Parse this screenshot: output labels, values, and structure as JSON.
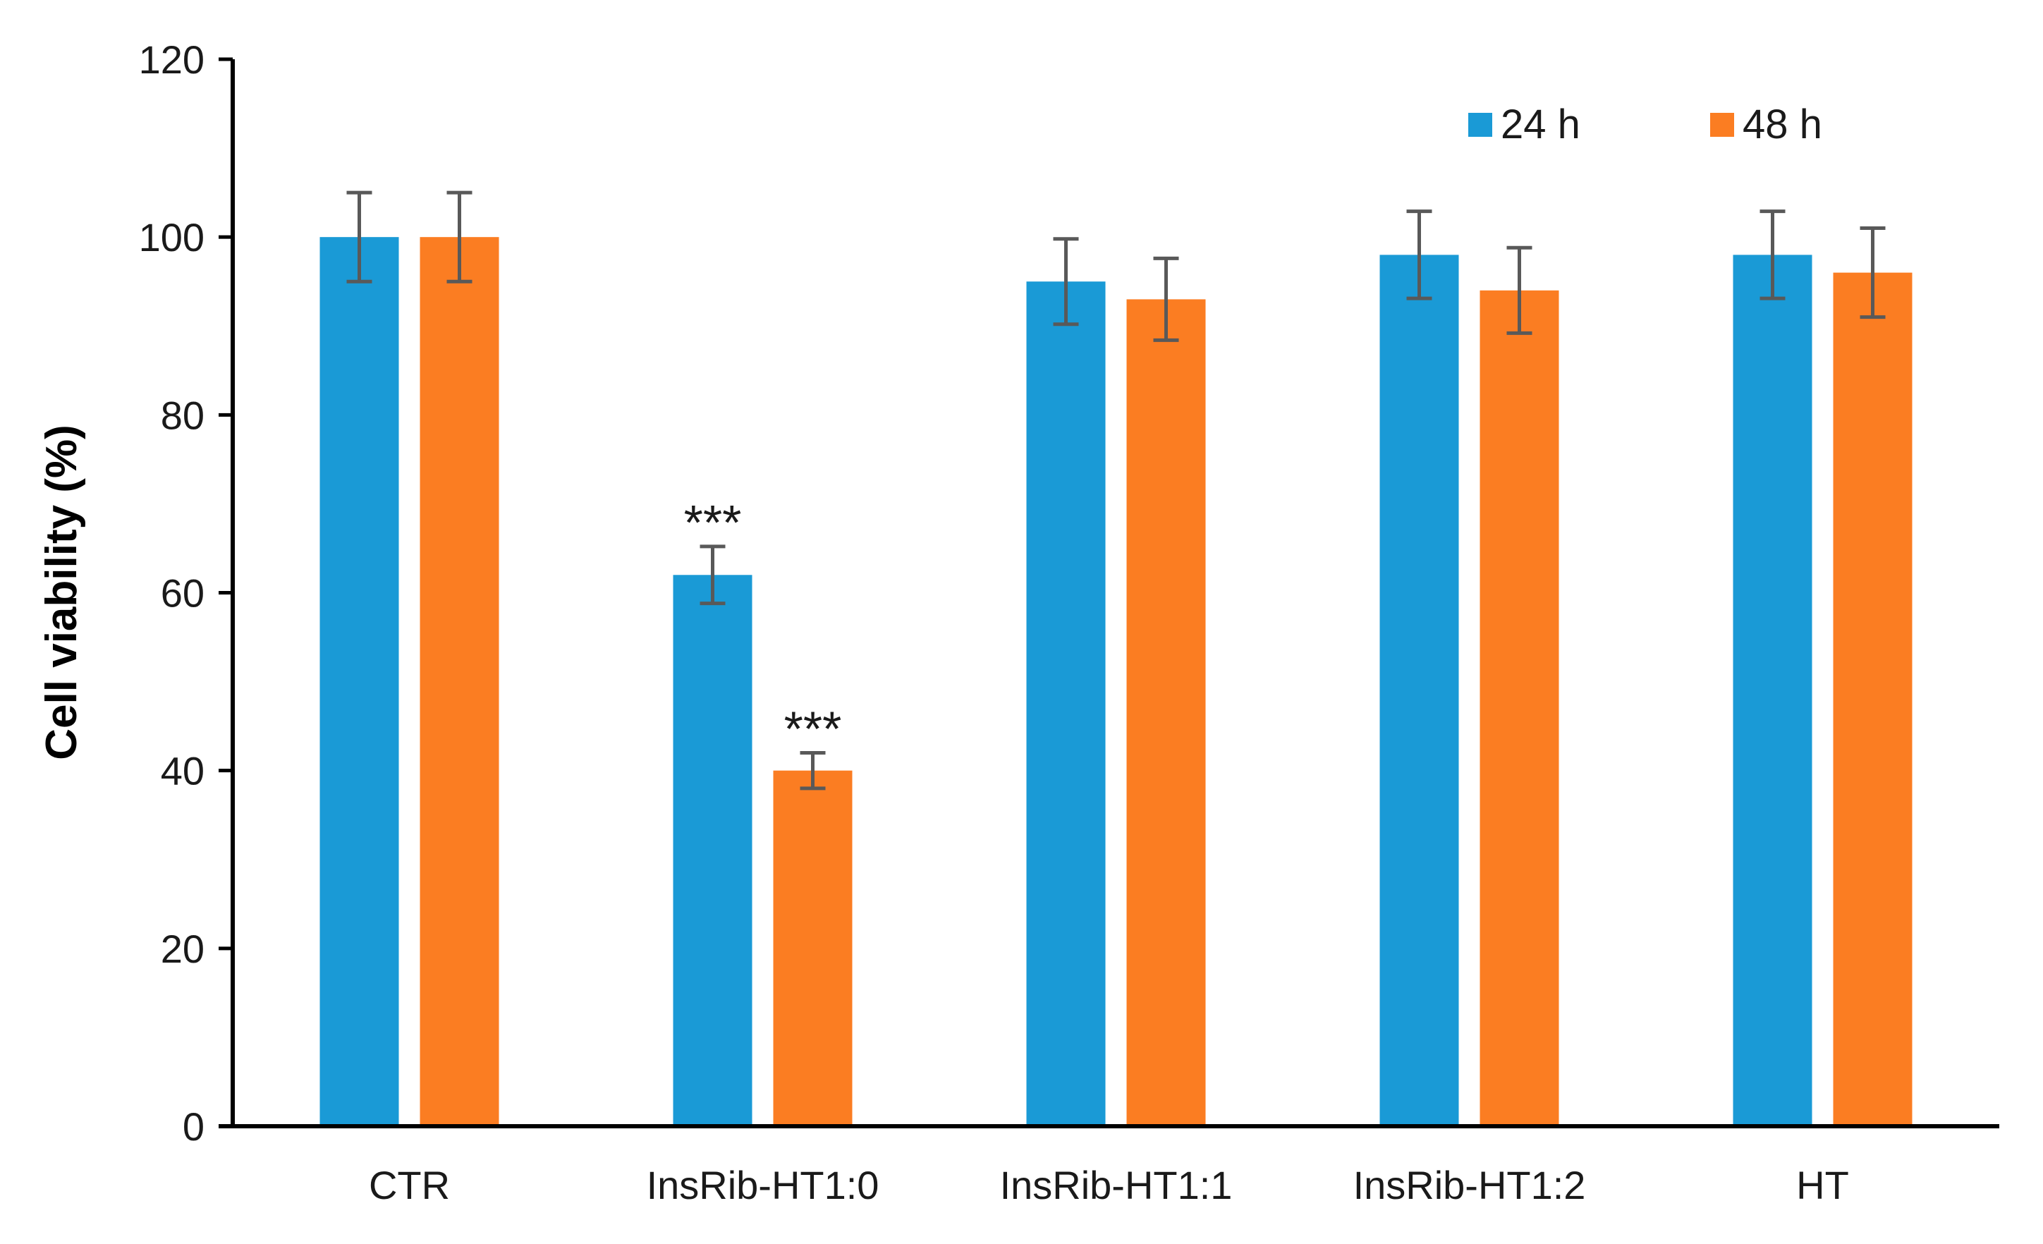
{
  "chart_data": {
    "type": "bar",
    "title": "",
    "xlabel": "",
    "ylabel": "Cell viability (%)",
    "ylim": [
      0,
      120
    ],
    "yticks": [
      0,
      20,
      40,
      60,
      80,
      100,
      120
    ],
    "ytick_labels": [
      "0",
      "20",
      "40",
      "60",
      "80",
      "100",
      "120"
    ],
    "grid": false,
    "legend_position": "top-right",
    "categories": [
      "CTR",
      "InsRib-HT1:0",
      "InsRib-HT1:1",
      "InsRib-HT1:2",
      "HT"
    ],
    "series": [
      {
        "name": "24 h",
        "color": "#1a9ad6",
        "values": [
          100,
          62,
          95,
          98,
          98
        ],
        "errors": [
          5,
          3.2,
          4.8,
          4.9,
          4.9
        ],
        "annotations": [
          "",
          "***",
          "",
          "",
          ""
        ]
      },
      {
        "name": "48 h",
        "color": "#fb7d22",
        "values": [
          100,
          40,
          93,
          94,
          96
        ],
        "errors": [
          5,
          2,
          4.6,
          4.8,
          5
        ],
        "annotations": [
          "",
          "***",
          "",
          "",
          ""
        ]
      }
    ],
    "error_bar_color": "#595959",
    "axis_color": "#000000"
  }
}
